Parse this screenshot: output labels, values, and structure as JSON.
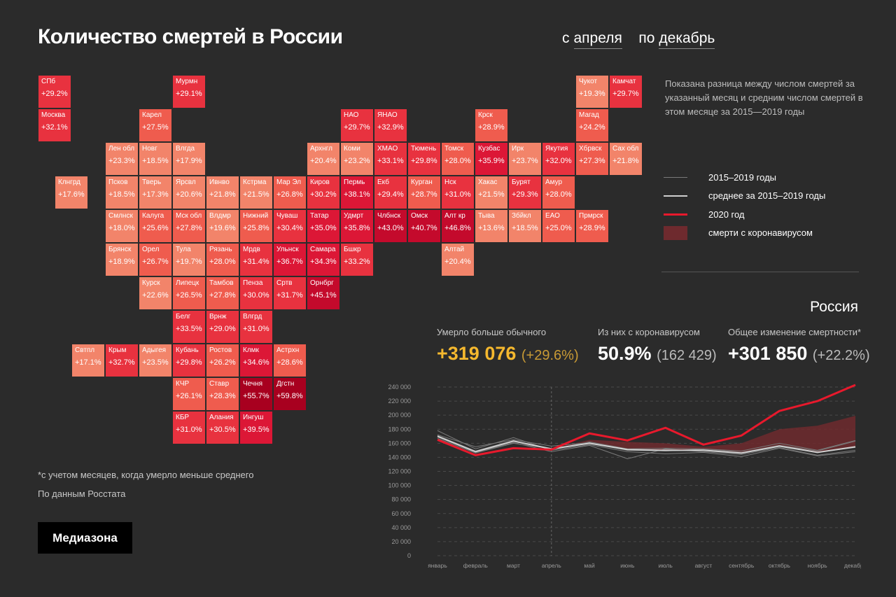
{
  "title": "Количество смертей в России",
  "period": {
    "prefix_from": "с",
    "from": "апреля",
    "prefix_to": "по",
    "to": "декабрь"
  },
  "description": "Показана разница между числом смертей за указанный месяц и средним числом смертей в этом месяце за 2015—2019 годы",
  "legend": [
    {
      "label": "2015–2019 годы",
      "icon": "thin-grey-line",
      "color": "#7a7a7a"
    },
    {
      "label": "среднее за 2015–2019 годы",
      "icon": "light-grey-line",
      "color": "#cfcfcf"
    },
    {
      "label": "2020 год",
      "icon": "red-line",
      "color": "#e8192c"
    },
    {
      "label": "смерти с коронавирусом",
      "icon": "dark-red-box",
      "color": "#6e2a2e"
    }
  ],
  "region": "Россия",
  "stats": [
    {
      "label": "Умерло больше обычного",
      "value": "+319 076",
      "extra": "(+29.6%)",
      "color": "#f5b82e",
      "extra_color": "#c89a35"
    },
    {
      "label": "Из них с коронавирусом",
      "value": "50.9%",
      "extra": "(162 429)",
      "color": "#ffffff",
      "extra_color": "#bbbbbb"
    },
    {
      "label": "Общее изменение смертности*",
      "value": "+301 850",
      "extra": "(+22.2%)",
      "color": "#ffffff",
      "extra_color": "#bbbbbb"
    }
  ],
  "footnote1": "*с учетом месяцев, когда умерло меньше среднего",
  "footnote2": "По данным Росстата",
  "logo": "Медиазона",
  "tiles": [
    {
      "name": "СПб",
      "value": "+29.2%",
      "col": 0,
      "row": 0
    },
    {
      "name": "Мурмн",
      "value": "+29.1%",
      "col": 4,
      "row": 0
    },
    {
      "name": "Чукот",
      "value": "+19.3%",
      "col": 16,
      "row": 0
    },
    {
      "name": "Камчат",
      "value": "+29.7%",
      "col": 17,
      "row": 0
    },
    {
      "name": "Москва",
      "value": "+32.1%",
      "col": 0,
      "row": 1
    },
    {
      "name": "Карел",
      "value": "+27.5%",
      "col": 3,
      "row": 1
    },
    {
      "name": "НАО",
      "value": "+29.7%",
      "col": 9,
      "row": 1
    },
    {
      "name": "ЯНАО",
      "value": "+32.9%",
      "col": 10,
      "row": 1
    },
    {
      "name": "Крск",
      "value": "+28.9%",
      "col": 13,
      "row": 1
    },
    {
      "name": "Магад",
      "value": "+24.2%",
      "col": 16,
      "row": 1
    },
    {
      "name": "Лен обл",
      "value": "+23.3%",
      "col": 2,
      "row": 2
    },
    {
      "name": "Новг",
      "value": "+18.5%",
      "col": 3,
      "row": 2
    },
    {
      "name": "Влгда",
      "value": "+17.9%",
      "col": 4,
      "row": 2
    },
    {
      "name": "Архнгл",
      "value": "+20.4%",
      "col": 8,
      "row": 2
    },
    {
      "name": "Коми",
      "value": "+23.2%",
      "col": 9,
      "row": 2
    },
    {
      "name": "ХМАО",
      "value": "+33.1%",
      "col": 10,
      "row": 2
    },
    {
      "name": "Тюмень",
      "value": "+29.8%",
      "col": 11,
      "row": 2
    },
    {
      "name": "Томск",
      "value": "+28.0%",
      "col": 12,
      "row": 2
    },
    {
      "name": "Кузбас",
      "value": "+35.9%",
      "col": 13,
      "row": 2
    },
    {
      "name": "Ирк",
      "value": "+23.7%",
      "col": 14,
      "row": 2
    },
    {
      "name": "Якутия",
      "value": "+32.0%",
      "col": 15,
      "row": 2
    },
    {
      "name": "Хбрвск",
      "value": "+27.3%",
      "col": 16,
      "row": 2
    },
    {
      "name": "Сах обл",
      "value": "+21.8%",
      "col": 17,
      "row": 2
    },
    {
      "name": "Клнгрд",
      "value": "+17.6%",
      "col": 0.5,
      "row": 3
    },
    {
      "name": "Псков",
      "value": "+18.5%",
      "col": 2,
      "row": 3
    },
    {
      "name": "Тверь",
      "value": "+17.3%",
      "col": 3,
      "row": 3
    },
    {
      "name": "Ярсвл",
      "value": "+20.6%",
      "col": 4,
      "row": 3
    },
    {
      "name": "Ивнво",
      "value": "+21.8%",
      "col": 5,
      "row": 3
    },
    {
      "name": "Кстрма",
      "value": "+21.5%",
      "col": 6,
      "row": 3
    },
    {
      "name": "Мар Эл",
      "value": "+26.8%",
      "col": 7,
      "row": 3
    },
    {
      "name": "Киров",
      "value": "+30.2%",
      "col": 8,
      "row": 3
    },
    {
      "name": "Пермь",
      "value": "+38.1%",
      "col": 9,
      "row": 3
    },
    {
      "name": "Екб",
      "value": "+29.4%",
      "col": 10,
      "row": 3
    },
    {
      "name": "Курган",
      "value": "+28.7%",
      "col": 11,
      "row": 3
    },
    {
      "name": "Нск",
      "value": "+31.0%",
      "col": 12,
      "row": 3
    },
    {
      "name": "Хакас",
      "value": "+21.5%",
      "col": 13,
      "row": 3
    },
    {
      "name": "Бурят",
      "value": "+29.3%",
      "col": 14,
      "row": 3
    },
    {
      "name": "Амур",
      "value": "+28.0%",
      "col": 15,
      "row": 3
    },
    {
      "name": "Смлнск",
      "value": "+18.0%",
      "col": 2,
      "row": 4
    },
    {
      "name": "Калуга",
      "value": "+25.6%",
      "col": 3,
      "row": 4
    },
    {
      "name": "Мск обл",
      "value": "+27.8%",
      "col": 4,
      "row": 4
    },
    {
      "name": "Влдмр",
      "value": "+19.6%",
      "col": 5,
      "row": 4
    },
    {
      "name": "Нижний",
      "value": "+25.8%",
      "col": 6,
      "row": 4
    },
    {
      "name": "Чуваш",
      "value": "+30.4%",
      "col": 7,
      "row": 4
    },
    {
      "name": "Татар",
      "value": "+35.0%",
      "col": 8,
      "row": 4
    },
    {
      "name": "Удмрт",
      "value": "+35.8%",
      "col": 9,
      "row": 4
    },
    {
      "name": "Члбнск",
      "value": "+43.0%",
      "col": 10,
      "row": 4
    },
    {
      "name": "Омск",
      "value": "+40.7%",
      "col": 11,
      "row": 4
    },
    {
      "name": "Алт кр",
      "value": "+46.8%",
      "col": 12,
      "row": 4
    },
    {
      "name": "Тыва",
      "value": "+13.6%",
      "col": 13,
      "row": 4
    },
    {
      "name": "Збйкл",
      "value": "+18.5%",
      "col": 14,
      "row": 4
    },
    {
      "name": "ЕАО",
      "value": "+25.0%",
      "col": 15,
      "row": 4
    },
    {
      "name": "Прмрск",
      "value": "+28.9%",
      "col": 16,
      "row": 4
    },
    {
      "name": "Брянск",
      "value": "+18.9%",
      "col": 2,
      "row": 5
    },
    {
      "name": "Орел",
      "value": "+26.7%",
      "col": 3,
      "row": 5
    },
    {
      "name": "Тула",
      "value": "+19.7%",
      "col": 4,
      "row": 5
    },
    {
      "name": "Рязань",
      "value": "+28.0%",
      "col": 5,
      "row": 5
    },
    {
      "name": "Мрдв",
      "value": "+31.4%",
      "col": 6,
      "row": 5
    },
    {
      "name": "Ульнск",
      "value": "+36.7%",
      "col": 7,
      "row": 5
    },
    {
      "name": "Самара",
      "value": "+34.3%",
      "col": 8,
      "row": 5
    },
    {
      "name": "Бшкр",
      "value": "+33.2%",
      "col": 9,
      "row": 5
    },
    {
      "name": "Алтай",
      "value": "+20.4%",
      "col": 12,
      "row": 5
    },
    {
      "name": "Курск",
      "value": "+22.6%",
      "col": 3,
      "row": 6
    },
    {
      "name": "Липецк",
      "value": "+26.5%",
      "col": 4,
      "row": 6
    },
    {
      "name": "Тамбов",
      "value": "+27.8%",
      "col": 5,
      "row": 6
    },
    {
      "name": "Пенза",
      "value": "+30.0%",
      "col": 6,
      "row": 6
    },
    {
      "name": "Сртв",
      "value": "+31.7%",
      "col": 7,
      "row": 6
    },
    {
      "name": "Орнбрг",
      "value": "+45.1%",
      "col": 8,
      "row": 6
    },
    {
      "name": "Белг",
      "value": "+33.5%",
      "col": 4,
      "row": 7
    },
    {
      "name": "Врнж",
      "value": "+29.0%",
      "col": 5,
      "row": 7
    },
    {
      "name": "Влгрд",
      "value": "+31.0%",
      "col": 6,
      "row": 7
    },
    {
      "name": "Свтпл",
      "value": "+17.1%",
      "col": 1,
      "row": 8
    },
    {
      "name": "Крым",
      "value": "+32.7%",
      "col": 2,
      "row": 8
    },
    {
      "name": "Адыгея",
      "value": "+23.5%",
      "col": 3,
      "row": 8
    },
    {
      "name": "Кубань",
      "value": "+29.8%",
      "col": 4,
      "row": 8
    },
    {
      "name": "Ростов",
      "value": "+26.2%",
      "col": 5,
      "row": 8
    },
    {
      "name": "Клмк",
      "value": "+34.6%",
      "col": 6,
      "row": 8
    },
    {
      "name": "Астрхн",
      "value": "+28.6%",
      "col": 7,
      "row": 8
    },
    {
      "name": "КЧР",
      "value": "+26.1%",
      "col": 4,
      "row": 9
    },
    {
      "name": "Ставр",
      "value": "+28.3%",
      "col": 5,
      "row": 9
    },
    {
      "name": "Чечня",
      "value": "+55.7%",
      "col": 6,
      "row": 9
    },
    {
      "name": "Дгстн",
      "value": "+59.8%",
      "col": 7,
      "row": 9
    },
    {
      "name": "КБР",
      "value": "+31.0%",
      "col": 4,
      "row": 10
    },
    {
      "name": "Алания",
      "value": "+30.5%",
      "col": 5,
      "row": 10
    },
    {
      "name": "Ингуш",
      "value": "+39.5%",
      "col": 6,
      "row": 10
    }
  ],
  "chart_data": {
    "type": "line",
    "x": [
      "январь",
      "февраль",
      "март",
      "апрель",
      "май",
      "июнь",
      "июль",
      "август",
      "сентябрь",
      "октябрь",
      "ноябрь",
      "декабрь"
    ],
    "ylim": [
      0,
      240000
    ],
    "yticks": [
      "0",
      "20 000",
      "40 000",
      "60 000",
      "80 000",
      "100 000",
      "120 000",
      "140 000",
      "160 000",
      "180 000",
      "200 000",
      "220 000",
      "240 000"
    ],
    "highlight_from": "апрель",
    "series": [
      {
        "name": "2020 год",
        "color": "#e8192c",
        "width": 3,
        "values": [
          165000,
          143000,
          153000,
          151000,
          174000,
          164000,
          182000,
          158000,
          171000,
          206000,
          220000,
          243000
        ]
      },
      {
        "name": "среднее за 2015–2019 годы",
        "color": "#cfcfcf",
        "width": 2,
        "values": [
          170000,
          148000,
          163000,
          152000,
          160000,
          151000,
          150000,
          150000,
          146000,
          156000,
          147000,
          155000
        ]
      }
    ],
    "years": [
      [
        178000,
        152000,
        168000,
        150000,
        158000,
        148000,
        145000,
        147000,
        141000,
        153000,
        142000,
        148000
      ],
      [
        172000,
        155000,
        165000,
        156000,
        161000,
        152000,
        153000,
        152000,
        147000,
        157000,
        147000,
        154000
      ],
      [
        169000,
        147000,
        161000,
        148000,
        157000,
        138000,
        152000,
        148000,
        144000,
        154000,
        143000,
        150000
      ],
      [
        167000,
        146000,
        160000,
        152000,
        161000,
        150000,
        149000,
        151000,
        146000,
        157000,
        149000,
        163000
      ],
      [
        171000,
        149000,
        164000,
        151000,
        162000,
        152000,
        149000,
        152000,
        149000,
        160000,
        150000,
        164000
      ]
    ],
    "covid_band_upper": [
      null,
      null,
      null,
      152000,
      165000,
      162000,
      160000,
      155000,
      160000,
      180000,
      185000,
      199000
    ]
  }
}
